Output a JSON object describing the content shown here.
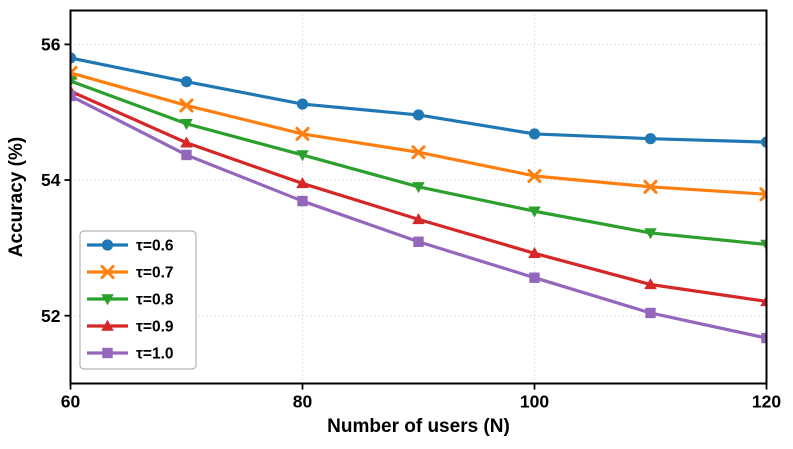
{
  "chart_data": {
    "type": "line",
    "title": "",
    "xlabel": "Number of users (N)",
    "ylabel": "Accuracy (%)",
    "x": [
      60,
      70,
      80,
      90,
      100,
      110,
      120
    ],
    "xtick_labels": [
      "60",
      "80",
      "100",
      "120"
    ],
    "xticks": [
      60,
      80,
      100,
      120
    ],
    "ytick_labels": [
      "52",
      "54",
      "56"
    ],
    "yticks": [
      52,
      54,
      56
    ],
    "xlim": [
      60,
      120
    ],
    "ylim": [
      51.0,
      56.5
    ],
    "grid": "dotted",
    "grid_color": "#c9c9c9",
    "axis_color": "#000000",
    "legend_position": "lower-left",
    "series": [
      {
        "name": "τ=0.6",
        "color": "#1f77b4",
        "marker": "circle",
        "values": [
          55.8,
          55.45,
          55.12,
          54.96,
          54.68,
          54.61,
          54.56
        ]
      },
      {
        "name": "τ=0.7",
        "color": "#ff7f0e",
        "marker": "x",
        "values": [
          55.58,
          55.1,
          54.68,
          54.41,
          54.06,
          53.9,
          53.79
        ]
      },
      {
        "name": "τ=0.8",
        "color": "#2ca02c",
        "marker": "triangle-down",
        "values": [
          55.46,
          54.83,
          54.37,
          53.9,
          53.54,
          53.22,
          53.05
        ]
      },
      {
        "name": "τ=0.9",
        "color": "#d62728",
        "marker": "triangle-up",
        "values": [
          55.31,
          54.55,
          53.95,
          53.42,
          52.92,
          52.46,
          52.21
        ]
      },
      {
        "name": "τ=1.0",
        "color": "#9467bd",
        "marker": "square",
        "values": [
          55.24,
          54.37,
          53.69,
          53.09,
          52.56,
          52.04,
          51.67
        ]
      }
    ]
  }
}
